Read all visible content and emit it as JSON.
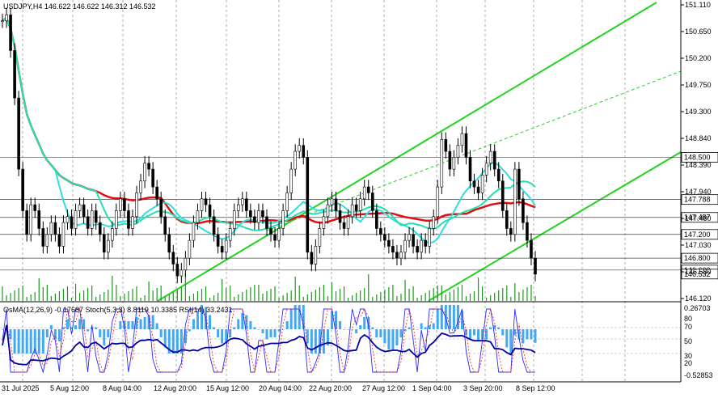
{
  "chart_data": {
    "type": "candlestick",
    "symbol_header": "USDJPY,H4  146.622 146.622 146.312 146.532",
    "osc_header": "OsMA(12,26,9) -0.17687  Stoch(5,3,3) 8.8119 10.3385  RSI(14) 33.2431",
    "y_ticks": [
      "151.110",
      "150.650",
      "150.200",
      "149.750",
      "149.300",
      "148.840",
      "148.390",
      "147.940",
      "147.480",
      "147.030",
      "146.580",
      "146.120"
    ],
    "price_tags": [
      "148.500",
      "147.788",
      "147.487",
      "147.200",
      "146.800",
      "146.600",
      "146.532"
    ],
    "price_tag_values": [
      148.5,
      147.788,
      147.487,
      147.2,
      146.8,
      146.6,
      146.532
    ],
    "osc_ticks": [
      "0.26703",
      "80",
      "70",
      "50",
      "30",
      "20",
      "-0.52853"
    ],
    "x_labels": [
      "31 Jul 2025",
      "5 Aug 12:00",
      "8 Aug 04:00",
      "12 Aug 20:00",
      "15 Aug 12:00",
      "20 Aug 04:00",
      "22 Aug 20:00",
      "27 Aug 12:00",
      "1 Sep 04:00",
      "3 Sep 20:00",
      "8 Sep 12:00"
    ],
    "y_range": [
      146.12,
      151.11
    ],
    "candles_close": [
      150.8,
      150.9,
      150.3,
      149.5,
      148.3,
      147.6,
      147.2,
      147.7,
      147.6,
      147.3,
      147.0,
      147.2,
      147.4,
      147.2,
      147.0,
      147.4,
      147.5,
      147.3,
      147.6,
      147.7,
      147.5,
      147.3,
      147.6,
      147.4,
      147.2,
      146.9,
      147.1,
      147.3,
      147.6,
      147.8,
      147.6,
      147.3,
      147.5,
      147.9,
      148.1,
      148.4,
      148.3,
      148.0,
      147.8,
      147.5,
      147.2,
      146.9,
      146.7,
      146.5,
      146.6,
      146.8,
      147.1,
      147.4,
      147.6,
      147.8,
      147.7,
      147.5,
      147.2,
      147.0,
      146.9,
      147.1,
      147.3,
      147.6,
      147.7,
      147.8,
      147.6,
      147.5,
      147.4,
      147.6,
      147.5,
      147.3,
      147.2,
      147.1,
      147.3,
      147.6,
      147.9,
      148.3,
      148.6,
      148.7,
      148.5,
      146.9,
      146.7,
      147.0,
      147.3,
      147.5,
      147.7,
      147.8,
      147.6,
      147.4,
      147.3,
      147.5,
      147.7,
      147.6,
      147.8,
      148.0,
      147.9,
      147.6,
      147.3,
      147.2,
      147.1,
      147.0,
      146.9,
      146.8,
      146.9,
      147.1,
      147.2,
      147.0,
      146.9,
      147.1,
      147.0,
      147.3,
      147.5,
      148.0,
      148.8,
      148.6,
      148.3,
      148.5,
      148.7,
      148.9,
      148.5,
      148.1,
      148.0,
      147.9,
      148.2,
      148.4,
      148.6,
      148.3,
      148.1,
      147.6,
      147.3,
      147.2,
      148.3,
      147.8,
      147.4,
      147.1,
      146.8,
      146.53
    ]
  }
}
